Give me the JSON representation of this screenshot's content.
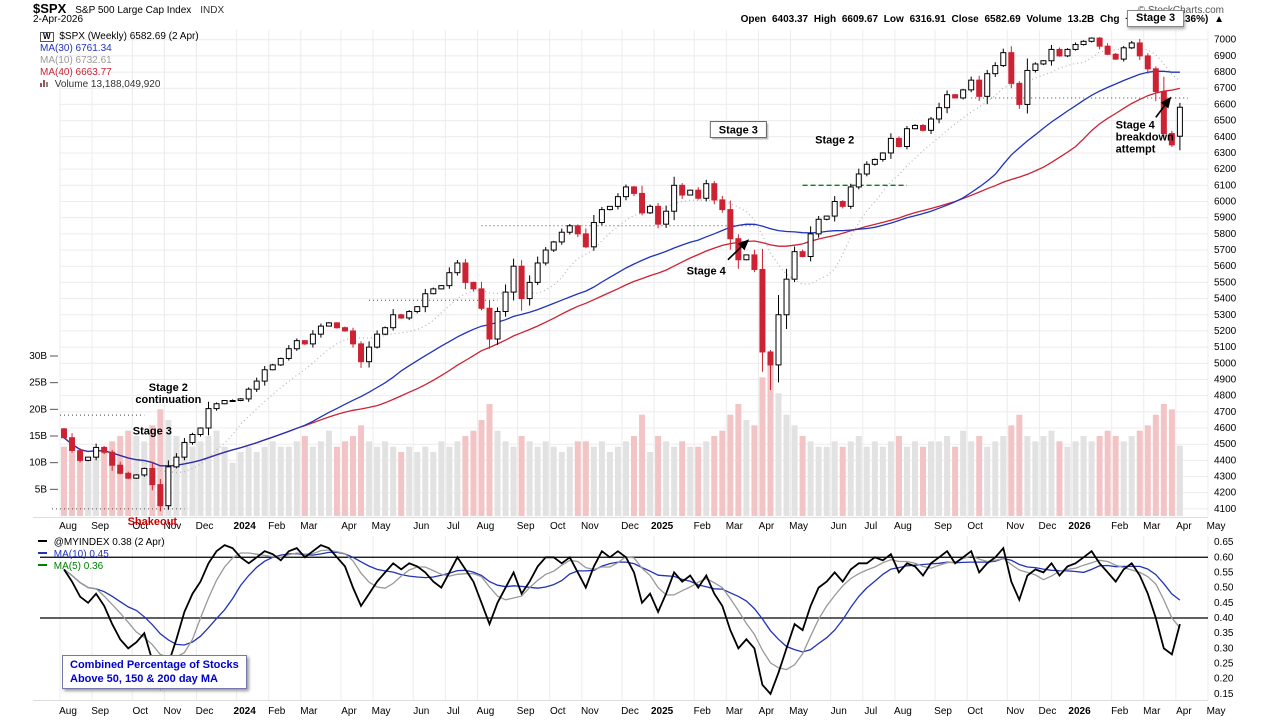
{
  "header": {
    "symbol": "$SPX",
    "name": "S&P 500 Large Cap Index",
    "exchange": "INDX",
    "date": "2-Apr-2026",
    "credit": "© StockCharts.com",
    "quote_line": "Open 6403.37 High 6609.67 Low 6316.91 Close 6582.69 Volume 13.2B Chg +214.10 (+3.36%) ▲",
    "stage_badge": "Stage 3"
  },
  "main_legend": {
    "period_icon": "W",
    "series": "$SPX (Weekly) 6582.69 (2 Apr)",
    "ma30": "MA(30) 6761.34",
    "ma10": "MA(10) 6732.61",
    "ma40": "MA(40) 6663.77",
    "volume": "Volume 13,188,049,920"
  },
  "lower_legend": {
    "series": "@MYINDEX 0.38 (2 Apr)",
    "ma10": "MA(10) 0.45",
    "ma5": "MA(5) 0.36",
    "note_line1": "Combined Percentage of Stocks",
    "note_line2": "Above 50, 150 & 200 day MA"
  },
  "colors": {
    "up_candle": "#ffffff",
    "down_candle": "#cc2233",
    "candle_outline": "#000000",
    "ma30": "#2233bb",
    "ma10": "#b5b5b5",
    "ma40": "#cc2233",
    "volume_up": "#e2e2e2",
    "volume_down": "#f3c4c6",
    "grid": "#ececec",
    "osc_index": "#000000",
    "osc_ma10": "#2233bb",
    "osc_ma5": "#999999",
    "accent_green": "#0a7d0a",
    "annotation_red": "#cc0000",
    "note_blue": "#0000cc"
  },
  "chart_data": [
    {
      "type": "candlestick+volume",
      "title": "$SPX (Weekly)",
      "price_axis": {
        "min": 4100,
        "max": 7000,
        "step": 100
      },
      "volume_axis": {
        "ticks": [
          5,
          10,
          15,
          20,
          25,
          30
        ],
        "unit": "B"
      },
      "months": [
        {
          "label": "Aug",
          "week": 0
        },
        {
          "label": "Sep",
          "week": 4
        },
        {
          "label": "Oct",
          "week": 9
        },
        {
          "label": "Nov",
          "week": 13
        },
        {
          "label": "Dec",
          "week": 17
        },
        {
          "label": "2024",
          "week": 22,
          "year": true
        },
        {
          "label": "Feb",
          "week": 26
        },
        {
          "label": "Mar",
          "week": 30
        },
        {
          "label": "Apr",
          "week": 35
        },
        {
          "label": "May",
          "week": 39
        },
        {
          "label": "Jun",
          "week": 44
        },
        {
          "label": "Jul",
          "week": 48
        },
        {
          "label": "Aug",
          "week": 52
        },
        {
          "label": "Sep",
          "week": 57
        },
        {
          "label": "Oct",
          "week": 61
        },
        {
          "label": "Nov",
          "week": 65
        },
        {
          "label": "Dec",
          "week": 70
        },
        {
          "label": "2025",
          "week": 74,
          "year": true
        },
        {
          "label": "Feb",
          "week": 79
        },
        {
          "label": "Mar",
          "week": 83
        },
        {
          "label": "Apr",
          "week": 87
        },
        {
          "label": "May",
          "week": 91
        },
        {
          "label": "Jun",
          "week": 96
        },
        {
          "label": "Jul",
          "week": 100
        },
        {
          "label": "Aug",
          "week": 104
        },
        {
          "label": "Sep",
          "week": 109
        },
        {
          "label": "Oct",
          "week": 113
        },
        {
          "label": "Nov",
          "week": 118
        },
        {
          "label": "Dec",
          "week": 122
        },
        {
          "label": "2026",
          "week": 126,
          "year": true
        },
        {
          "label": "Feb",
          "week": 131
        },
        {
          "label": "Mar",
          "week": 135
        },
        {
          "label": "Apr",
          "week": 139
        },
        {
          "label": "May",
          "week": 143
        }
      ],
      "closes": [
        4540,
        4460,
        4400,
        4420,
        4480,
        4450,
        4370,
        4320,
        4290,
        4310,
        4350,
        4250,
        4120,
        4360,
        4420,
        4510,
        4560,
        4600,
        4720,
        4750,
        4770,
        4770,
        4780,
        4840,
        4890,
        4960,
        4990,
        5030,
        5090,
        5140,
        5120,
        5180,
        5230,
        5250,
        5220,
        5200,
        5120,
        5010,
        5100,
        5180,
        5220,
        5300,
        5280,
        5320,
        5350,
        5430,
        5460,
        5480,
        5560,
        5620,
        5500,
        5460,
        5340,
        5150,
        5320,
        5440,
        5600,
        5400,
        5500,
        5620,
        5700,
        5750,
        5810,
        5850,
        5800,
        5720,
        5870,
        5950,
        5970,
        6030,
        6090,
        6050,
        5930,
        5970,
        5860,
        5940,
        6100,
        6040,
        6070,
        6020,
        6110,
        6010,
        5950,
        5770,
        5640,
        5670,
        5580,
        5070,
        4990,
        5300,
        5520,
        5690,
        5660,
        5800,
        5890,
        5910,
        6000,
        5970,
        6090,
        6170,
        6230,
        6260,
        6300,
        6390,
        6340,
        6450,
        6470,
        6440,
        6510,
        6580,
        6660,
        6640,
        6690,
        6750,
        6650,
        6790,
        6840,
        6920,
        6730,
        6600,
        6810,
        6850,
        6870,
        6940,
        6900,
        6940,
        6970,
        6990,
        7010,
        6960,
        6910,
        6880,
        6950,
        6980,
        6900,
        6820,
        6680,
        6420,
        6350,
        6582.69
      ],
      "volumes": [
        13,
        12,
        12,
        11,
        12,
        13,
        14,
        15,
        16,
        15,
        14,
        17,
        20,
        18,
        15,
        14,
        13,
        14,
        15,
        16,
        13,
        10,
        12,
        13,
        12,
        13,
        14,
        13,
        13,
        14,
        15,
        13,
        14,
        16,
        13,
        14,
        15,
        17,
        14,
        13,
        14,
        13,
        12,
        13,
        12,
        13,
        12,
        14,
        13,
        14,
        15,
        16,
        18,
        21,
        16,
        14,
        13,
        15,
        14,
        13,
        14,
        13,
        12,
        13,
        14,
        14,
        13,
        14,
        12,
        13,
        14,
        15,
        19,
        12,
        15,
        14,
        13,
        14,
        13,
        13,
        14,
        15,
        16,
        19,
        21,
        18,
        17,
        26,
        29,
        23,
        19,
        17,
        15,
        14,
        13,
        13,
        14,
        13,
        14,
        15,
        13,
        14,
        13,
        14,
        15,
        13,
        14,
        13,
        14,
        14,
        15,
        13,
        16,
        14,
        15,
        13,
        14,
        15,
        17,
        19,
        15,
        14,
        15,
        16,
        14,
        13,
        14,
        15,
        14,
        15,
        16,
        15,
        14,
        15,
        16,
        17,
        19,
        21,
        20,
        13.2
      ],
      "overrides": {
        "12": {
          "low": 4085
        },
        "53": {
          "low": 5090
        },
        "88": {
          "low": 4835
        },
        "139": {
          "open": 6403.37,
          "high": 6609.67,
          "low": 6316.91
        }
      },
      "last_candle": {
        "open": 6403.37,
        "high": 6609.67,
        "low": 6316.91,
        "close": 6582.69,
        "volume": "13.2B"
      },
      "ma_periods": {
        "ma10": 10,
        "ma30": 30,
        "ma40": 40
      },
      "ref_lines": [
        {
          "price": 6640,
          "w1": 113,
          "w2": 140,
          "style": "dotted",
          "color": "#444444"
        },
        {
          "price": 5850,
          "w1": 52,
          "w2": 86,
          "style": "dotted",
          "color": "#444444"
        },
        {
          "price": 5390,
          "w1": 38,
          "w2": 54,
          "style": "dotted",
          "color": "#444444"
        },
        {
          "price": 4680,
          "w1": -0.5,
          "w2": 10,
          "style": "dotted",
          "color": "#444444"
        },
        {
          "price": 4100,
          "w1": -1.5,
          "w2": 15,
          "style": "dotted",
          "color": "#444444"
        },
        {
          "price": 6100,
          "w1": 92,
          "w2": 105,
          "style": "dashed",
          "color": "#0a7d0a"
        }
      ],
      "annotations": [
        {
          "id": "stage2-continuation",
          "lines": [
            "Stage 2",
            "continuation"
          ],
          "week": 13,
          "price": 4830,
          "anchor": "middle",
          "bold": true
        },
        {
          "id": "stage3-left",
          "lines": [
            "Stage 3"
          ],
          "week": 11,
          "price": 4560,
          "anchor": "middle",
          "bold": true
        },
        {
          "id": "shakeout",
          "lines": [
            "Shakeout"
          ],
          "week": 11,
          "price": 4000,
          "anchor": "middle",
          "bold": true,
          "color": "#cc0000"
        },
        {
          "id": "stage3-mid",
          "lines": [
            "Stage 3"
          ],
          "week": 84,
          "price": 6420,
          "anchor": "middle",
          "bold": true,
          "box": true
        },
        {
          "id": "stage2-mid",
          "lines": [
            "Stage 2"
          ],
          "week": 96,
          "price": 6360,
          "anchor": "middle",
          "bold": true
        },
        {
          "id": "stage4-mid",
          "lines": [
            "Stage 4"
          ],
          "week": 80,
          "price": 5550,
          "anchor": "middle",
          "bold": true
        },
        {
          "id": "stage4-breakdown",
          "lines": [
            "Stage 4",
            "breakdown",
            "attempt"
          ],
          "week": 131,
          "price": 6450,
          "anchor": "start",
          "bold": true
        }
      ],
      "arrows": [
        {
          "x1w": 82.7,
          "y1p": 5640,
          "x2w": 85.2,
          "y2p": 5760
        },
        {
          "x1w": 136.0,
          "y1p": 6520,
          "x2w": 137.8,
          "y2p": 6640
        }
      ]
    },
    {
      "type": "line",
      "title": "@MYINDEX — Combined Percentage of Stocks Above 50, 150 & 200 day MA",
      "axis": {
        "min": 0.15,
        "max": 0.65,
        "step": 0.05
      },
      "hlines": [
        0.6,
        0.4
      ],
      "ma_periods": [
        5,
        10
      ],
      "values": [
        0.56,
        0.52,
        0.47,
        0.45,
        0.48,
        0.44,
        0.38,
        0.33,
        0.3,
        0.32,
        0.35,
        0.26,
        0.17,
        0.25,
        0.33,
        0.42,
        0.48,
        0.52,
        0.58,
        0.62,
        0.64,
        0.63,
        0.6,
        0.58,
        0.6,
        0.62,
        0.61,
        0.59,
        0.62,
        0.63,
        0.6,
        0.62,
        0.64,
        0.63,
        0.6,
        0.57,
        0.5,
        0.44,
        0.48,
        0.52,
        0.55,
        0.58,
        0.56,
        0.58,
        0.57,
        0.55,
        0.52,
        0.5,
        0.55,
        0.6,
        0.56,
        0.52,
        0.45,
        0.38,
        0.45,
        0.5,
        0.55,
        0.48,
        0.52,
        0.57,
        0.6,
        0.6,
        0.58,
        0.6,
        0.55,
        0.5,
        0.57,
        0.62,
        0.6,
        0.62,
        0.6,
        0.55,
        0.45,
        0.48,
        0.42,
        0.48,
        0.55,
        0.52,
        0.54,
        0.5,
        0.54,
        0.48,
        0.44,
        0.36,
        0.3,
        0.33,
        0.3,
        0.18,
        0.15,
        0.22,
        0.3,
        0.38,
        0.36,
        0.44,
        0.5,
        0.52,
        0.55,
        0.52,
        0.56,
        0.58,
        0.58,
        0.6,
        0.59,
        0.61,
        0.55,
        0.58,
        0.57,
        0.54,
        0.58,
        0.6,
        0.62,
        0.58,
        0.6,
        0.62,
        0.55,
        0.58,
        0.6,
        0.63,
        0.52,
        0.46,
        0.54,
        0.56,
        0.55,
        0.58,
        0.54,
        0.57,
        0.58,
        0.6,
        0.62,
        0.58,
        0.55,
        0.52,
        0.56,
        0.58,
        0.54,
        0.48,
        0.4,
        0.3,
        0.28,
        0.38
      ]
    }
  ]
}
